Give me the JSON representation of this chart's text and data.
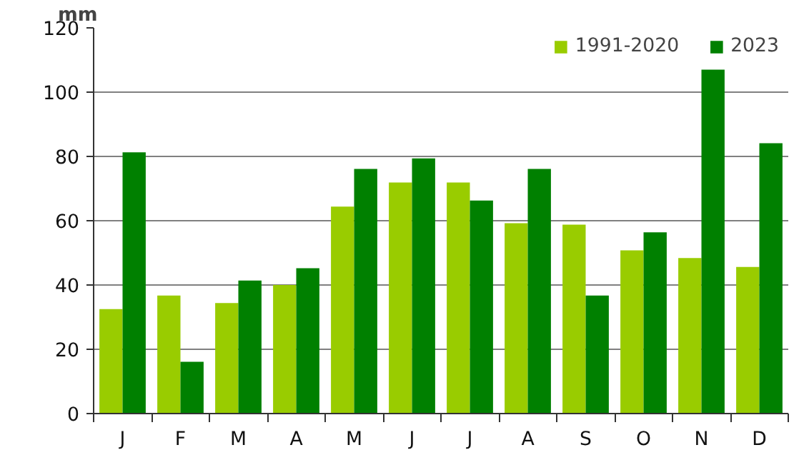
{
  "chart_data": {
    "type": "bar",
    "ylabel": "mm",
    "categories": [
      "J",
      "F",
      "M",
      "A",
      "M",
      "J",
      "J",
      "A",
      "S",
      "O",
      "N",
      "D"
    ],
    "series": [
      {
        "name": "1991-2020",
        "color": "#99cc00",
        "values": [
          32.5,
          36.7,
          34.4,
          40,
          64.4,
          71.9,
          71.9,
          59.2,
          58.8,
          50.8,
          48.4,
          45.6
        ]
      },
      {
        "name": "2023",
        "color": "#008000",
        "values": [
          81.3,
          16.1,
          41.4,
          45.2,
          76.1,
          79.4,
          66.3,
          76.1,
          36.7,
          56.4,
          107,
          84.1
        ]
      }
    ],
    "ylim": [
      0,
      120
    ],
    "yticks": [
      0,
      20,
      40,
      60,
      80,
      100,
      120
    ],
    "grid": "y",
    "legend": "top right"
  }
}
